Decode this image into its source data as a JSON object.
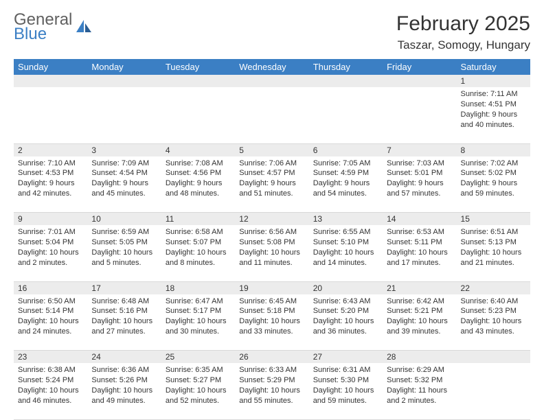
{
  "logo": {
    "word1": "General",
    "word2": "Blue"
  },
  "title": "February 2025",
  "location": "Taszar, Somogy, Hungary",
  "dayHeaders": [
    "Sunday",
    "Monday",
    "Tuesday",
    "Wednesday",
    "Thursday",
    "Friday",
    "Saturday"
  ],
  "colors": {
    "headerBg": "#3b7fc4",
    "headerText": "#ffffff",
    "dayNumBg": "#ececec",
    "text": "#333333",
    "logoGray": "#606060",
    "logoBlue": "#3b7fc4",
    "pageBg": "#ffffff",
    "border": "#d8d8d8"
  },
  "typography": {
    "titleSize": 30,
    "locationSize": 17,
    "headerSize": 13,
    "dayNumSize": 12,
    "cellSize": 11,
    "logoSize": 24
  },
  "weeks": [
    {
      "nums": [
        "",
        "",
        "",
        "",
        "",
        "",
        "1"
      ],
      "cells": [
        null,
        null,
        null,
        null,
        null,
        null,
        {
          "sunrise": "Sunrise: 7:11 AM",
          "sunset": "Sunset: 4:51 PM",
          "daylight": "Daylight: 9 hours and 40 minutes."
        }
      ]
    },
    {
      "nums": [
        "2",
        "3",
        "4",
        "5",
        "6",
        "7",
        "8"
      ],
      "cells": [
        {
          "sunrise": "Sunrise: 7:10 AM",
          "sunset": "Sunset: 4:53 PM",
          "daylight": "Daylight: 9 hours and 42 minutes."
        },
        {
          "sunrise": "Sunrise: 7:09 AM",
          "sunset": "Sunset: 4:54 PM",
          "daylight": "Daylight: 9 hours and 45 minutes."
        },
        {
          "sunrise": "Sunrise: 7:08 AM",
          "sunset": "Sunset: 4:56 PM",
          "daylight": "Daylight: 9 hours and 48 minutes."
        },
        {
          "sunrise": "Sunrise: 7:06 AM",
          "sunset": "Sunset: 4:57 PM",
          "daylight": "Daylight: 9 hours and 51 minutes."
        },
        {
          "sunrise": "Sunrise: 7:05 AM",
          "sunset": "Sunset: 4:59 PM",
          "daylight": "Daylight: 9 hours and 54 minutes."
        },
        {
          "sunrise": "Sunrise: 7:03 AM",
          "sunset": "Sunset: 5:01 PM",
          "daylight": "Daylight: 9 hours and 57 minutes."
        },
        {
          "sunrise": "Sunrise: 7:02 AM",
          "sunset": "Sunset: 5:02 PM",
          "daylight": "Daylight: 9 hours and 59 minutes."
        }
      ]
    },
    {
      "nums": [
        "9",
        "10",
        "11",
        "12",
        "13",
        "14",
        "15"
      ],
      "cells": [
        {
          "sunrise": "Sunrise: 7:01 AM",
          "sunset": "Sunset: 5:04 PM",
          "daylight": "Daylight: 10 hours and 2 minutes."
        },
        {
          "sunrise": "Sunrise: 6:59 AM",
          "sunset": "Sunset: 5:05 PM",
          "daylight": "Daylight: 10 hours and 5 minutes."
        },
        {
          "sunrise": "Sunrise: 6:58 AM",
          "sunset": "Sunset: 5:07 PM",
          "daylight": "Daylight: 10 hours and 8 minutes."
        },
        {
          "sunrise": "Sunrise: 6:56 AM",
          "sunset": "Sunset: 5:08 PM",
          "daylight": "Daylight: 10 hours and 11 minutes."
        },
        {
          "sunrise": "Sunrise: 6:55 AM",
          "sunset": "Sunset: 5:10 PM",
          "daylight": "Daylight: 10 hours and 14 minutes."
        },
        {
          "sunrise": "Sunrise: 6:53 AM",
          "sunset": "Sunset: 5:11 PM",
          "daylight": "Daylight: 10 hours and 17 minutes."
        },
        {
          "sunrise": "Sunrise: 6:51 AM",
          "sunset": "Sunset: 5:13 PM",
          "daylight": "Daylight: 10 hours and 21 minutes."
        }
      ]
    },
    {
      "nums": [
        "16",
        "17",
        "18",
        "19",
        "20",
        "21",
        "22"
      ],
      "cells": [
        {
          "sunrise": "Sunrise: 6:50 AM",
          "sunset": "Sunset: 5:14 PM",
          "daylight": "Daylight: 10 hours and 24 minutes."
        },
        {
          "sunrise": "Sunrise: 6:48 AM",
          "sunset": "Sunset: 5:16 PM",
          "daylight": "Daylight: 10 hours and 27 minutes."
        },
        {
          "sunrise": "Sunrise: 6:47 AM",
          "sunset": "Sunset: 5:17 PM",
          "daylight": "Daylight: 10 hours and 30 minutes."
        },
        {
          "sunrise": "Sunrise: 6:45 AM",
          "sunset": "Sunset: 5:18 PM",
          "daylight": "Daylight: 10 hours and 33 minutes."
        },
        {
          "sunrise": "Sunrise: 6:43 AM",
          "sunset": "Sunset: 5:20 PM",
          "daylight": "Daylight: 10 hours and 36 minutes."
        },
        {
          "sunrise": "Sunrise: 6:42 AM",
          "sunset": "Sunset: 5:21 PM",
          "daylight": "Daylight: 10 hours and 39 minutes."
        },
        {
          "sunrise": "Sunrise: 6:40 AM",
          "sunset": "Sunset: 5:23 PM",
          "daylight": "Daylight: 10 hours and 43 minutes."
        }
      ]
    },
    {
      "nums": [
        "23",
        "24",
        "25",
        "26",
        "27",
        "28",
        ""
      ],
      "cells": [
        {
          "sunrise": "Sunrise: 6:38 AM",
          "sunset": "Sunset: 5:24 PM",
          "daylight": "Daylight: 10 hours and 46 minutes."
        },
        {
          "sunrise": "Sunrise: 6:36 AM",
          "sunset": "Sunset: 5:26 PM",
          "daylight": "Daylight: 10 hours and 49 minutes."
        },
        {
          "sunrise": "Sunrise: 6:35 AM",
          "sunset": "Sunset: 5:27 PM",
          "daylight": "Daylight: 10 hours and 52 minutes."
        },
        {
          "sunrise": "Sunrise: 6:33 AM",
          "sunset": "Sunset: 5:29 PM",
          "daylight": "Daylight: 10 hours and 55 minutes."
        },
        {
          "sunrise": "Sunrise: 6:31 AM",
          "sunset": "Sunset: 5:30 PM",
          "daylight": "Daylight: 10 hours and 59 minutes."
        },
        {
          "sunrise": "Sunrise: 6:29 AM",
          "sunset": "Sunset: 5:32 PM",
          "daylight": "Daylight: 11 hours and 2 minutes."
        },
        null
      ]
    }
  ]
}
